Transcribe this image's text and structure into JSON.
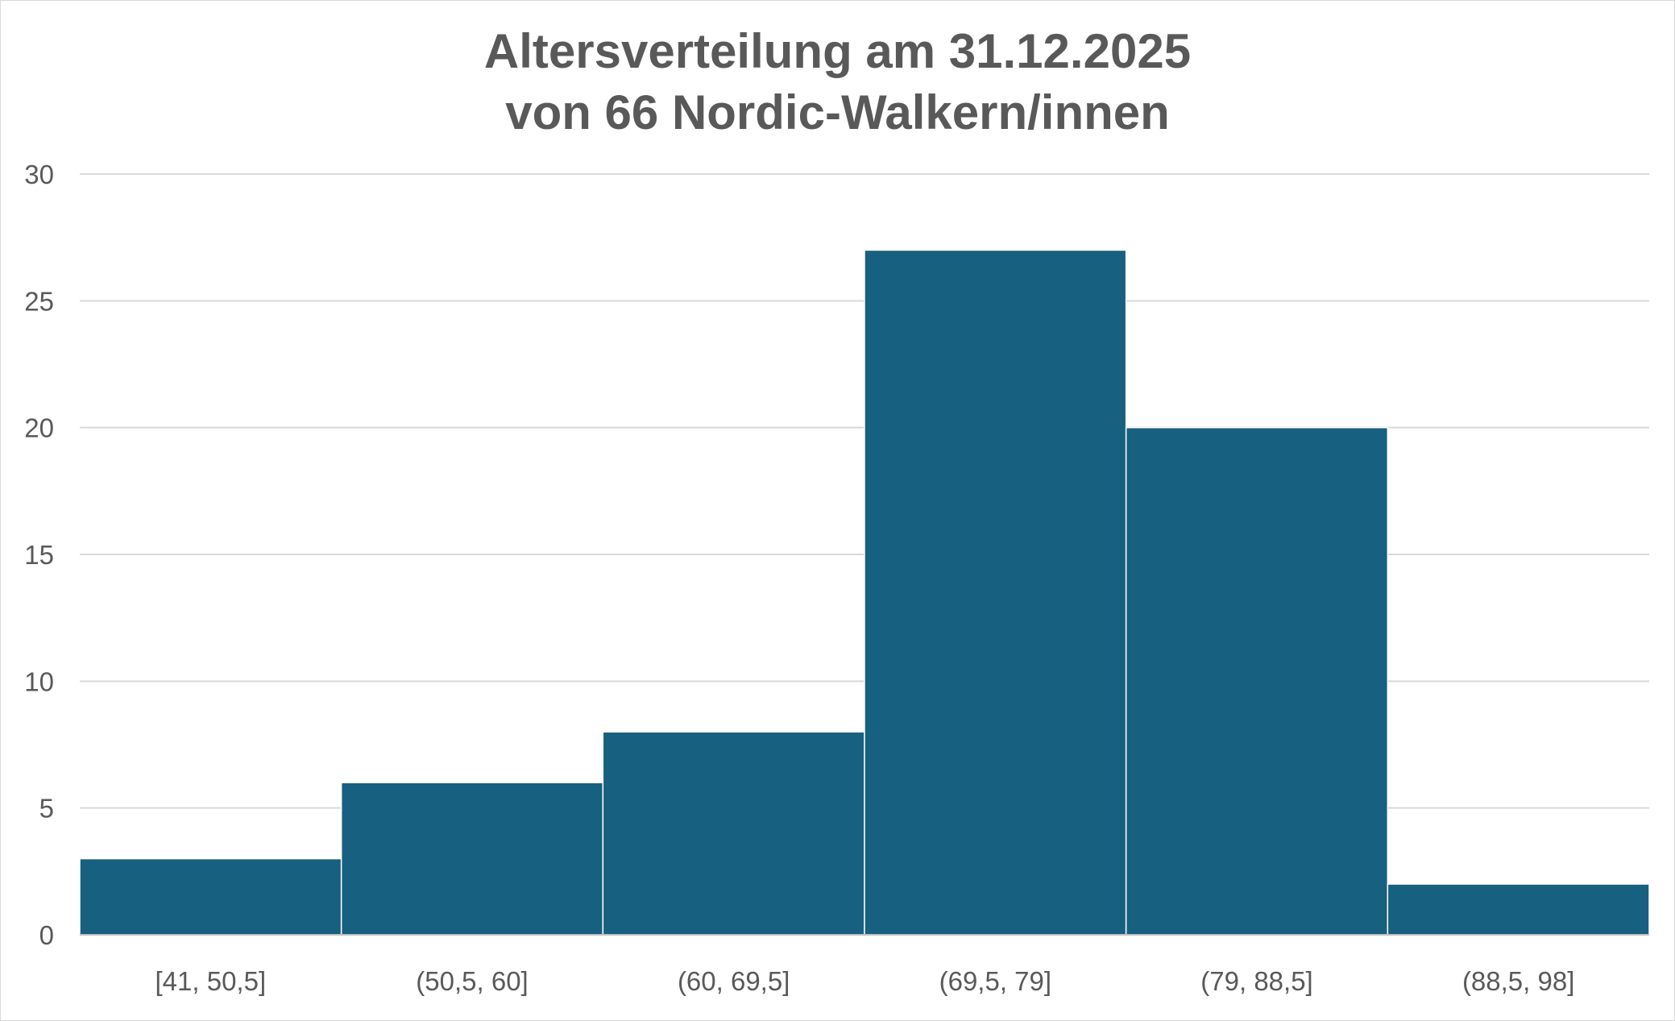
{
  "chart_data": {
    "type": "bar",
    "title": "Altersverteilung am 31.12.2025",
    "subtitle": "von 66 Nordic-Walkern/innen",
    "categories": [
      "[41, 50,5]",
      "(50,5, 60]",
      "(60, 69,5]",
      "(69,5, 79]",
      "(79, 88,5]",
      "(88,5, 98]"
    ],
    "values": [
      3,
      6,
      8,
      27,
      20,
      2
    ],
    "yticks": [
      "0",
      "5",
      "10",
      "15",
      "20",
      "25",
      "30"
    ],
    "ylim": [
      0,
      30
    ],
    "grid": true,
    "legend": "none",
    "colors": {
      "bar": "#17607f",
      "grid": "#d9d9d9",
      "axis": "#bfbfbf",
      "text": "#595959"
    }
  }
}
